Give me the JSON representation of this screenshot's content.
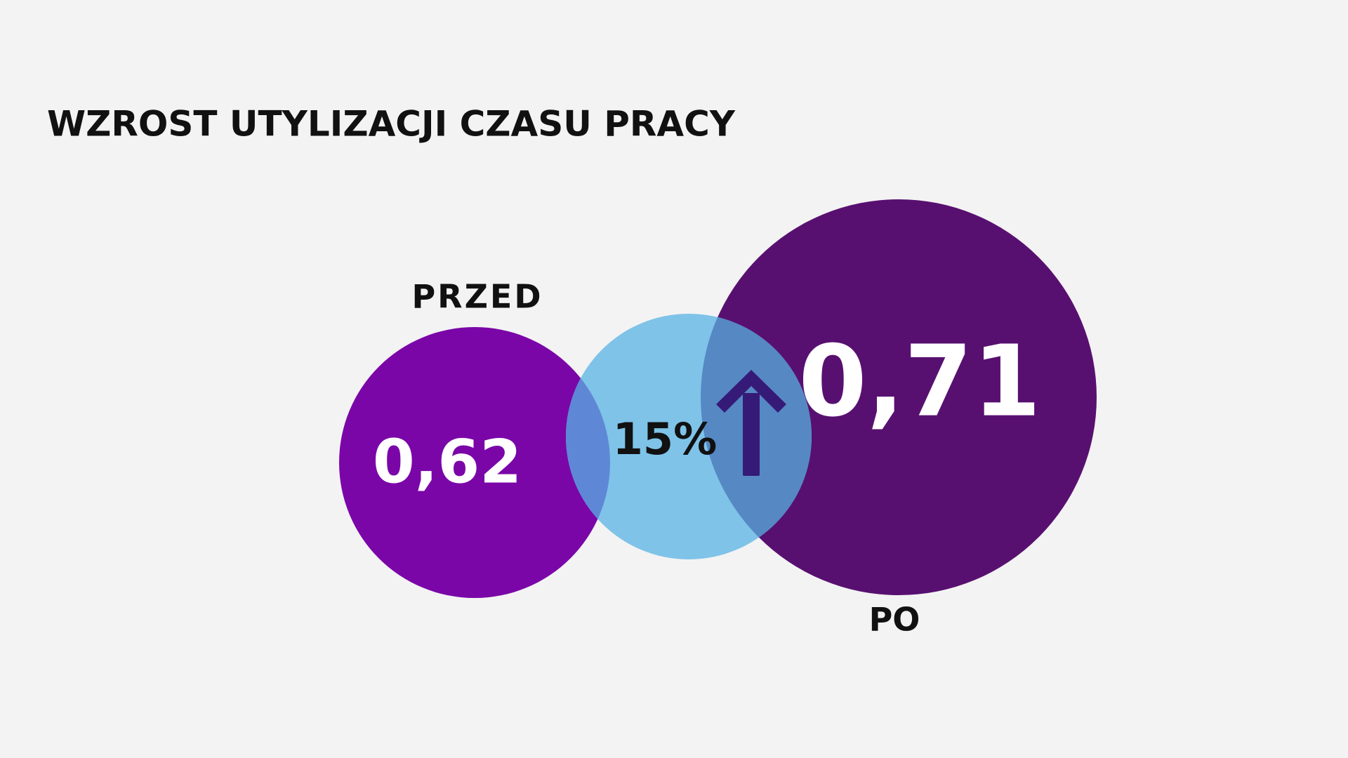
{
  "title": "WZROST UTYLIZACJI CZASU PRACY",
  "before": {
    "label": "PRZED",
    "value": "0,62"
  },
  "change": {
    "value": "15%"
  },
  "after": {
    "label": "PO",
    "value": "0,71"
  }
}
